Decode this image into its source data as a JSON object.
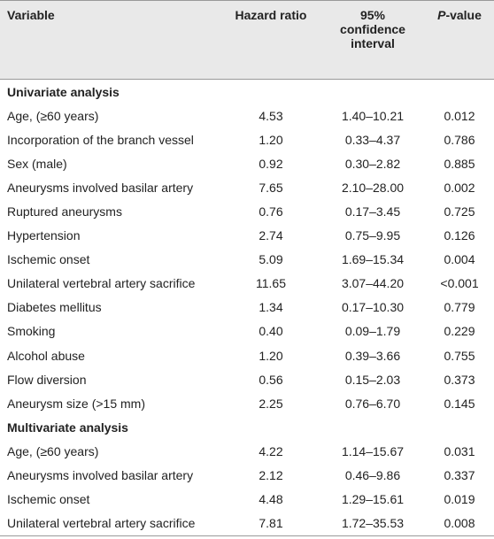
{
  "table": {
    "header": [
      "Variable",
      "Hazard ratio",
      "95% confidence interval",
      "P-value"
    ],
    "sections": [
      {
        "title": "Univariate analysis",
        "rows": [
          [
            "Age, (≥60 years)",
            "4.53",
            "1.40–10.21",
            "0.012"
          ],
          [
            "Incorporation of the branch vessel",
            "1.20",
            "0.33–4.37",
            "0.786"
          ],
          [
            "Sex (male)",
            "0.92",
            "0.30–2.82",
            "0.885"
          ],
          [
            "Aneurysms involved basilar artery",
            "7.65",
            "2.10–28.00",
            "0.002"
          ],
          [
            "Ruptured aneurysms",
            "0.76",
            "0.17–3.45",
            "0.725"
          ],
          [
            "Hypertension",
            "2.74",
            "0.75–9.95",
            "0.126"
          ],
          [
            "Ischemic onset",
            "5.09",
            "1.69–15.34",
            "0.004"
          ],
          [
            "Unilateral vertebral artery sacrifice",
            "11.65",
            "3.07–44.20",
            "<0.001"
          ],
          [
            "Diabetes mellitus",
            "1.34",
            "0.17–10.30",
            "0.779"
          ],
          [
            "Smoking",
            "0.40",
            "0.09–1.79",
            "0.229"
          ],
          [
            "Alcohol abuse",
            "1.20",
            "0.39–3.66",
            "0.755"
          ],
          [
            "Flow diversion",
            "0.56",
            "0.15–2.03",
            "0.373"
          ],
          [
            "Aneurysm size (>15 mm)",
            "2.25",
            "0.76–6.70",
            "0.145"
          ]
        ]
      },
      {
        "title": "Multivariate analysis",
        "rows": [
          [
            "Age, (≥60 years)",
            "4.22",
            "1.14–15.67",
            "0.031"
          ],
          [
            "Aneurysms involved basilar artery",
            "2.12",
            "0.46–9.86",
            "0.337"
          ],
          [
            "Ischemic onset",
            "4.48",
            "1.29–15.61",
            "0.019"
          ],
          [
            "Unilateral vertebral artery sacrifice",
            "7.81",
            "1.72–35.53",
            "0.008"
          ]
        ]
      }
    ]
  }
}
